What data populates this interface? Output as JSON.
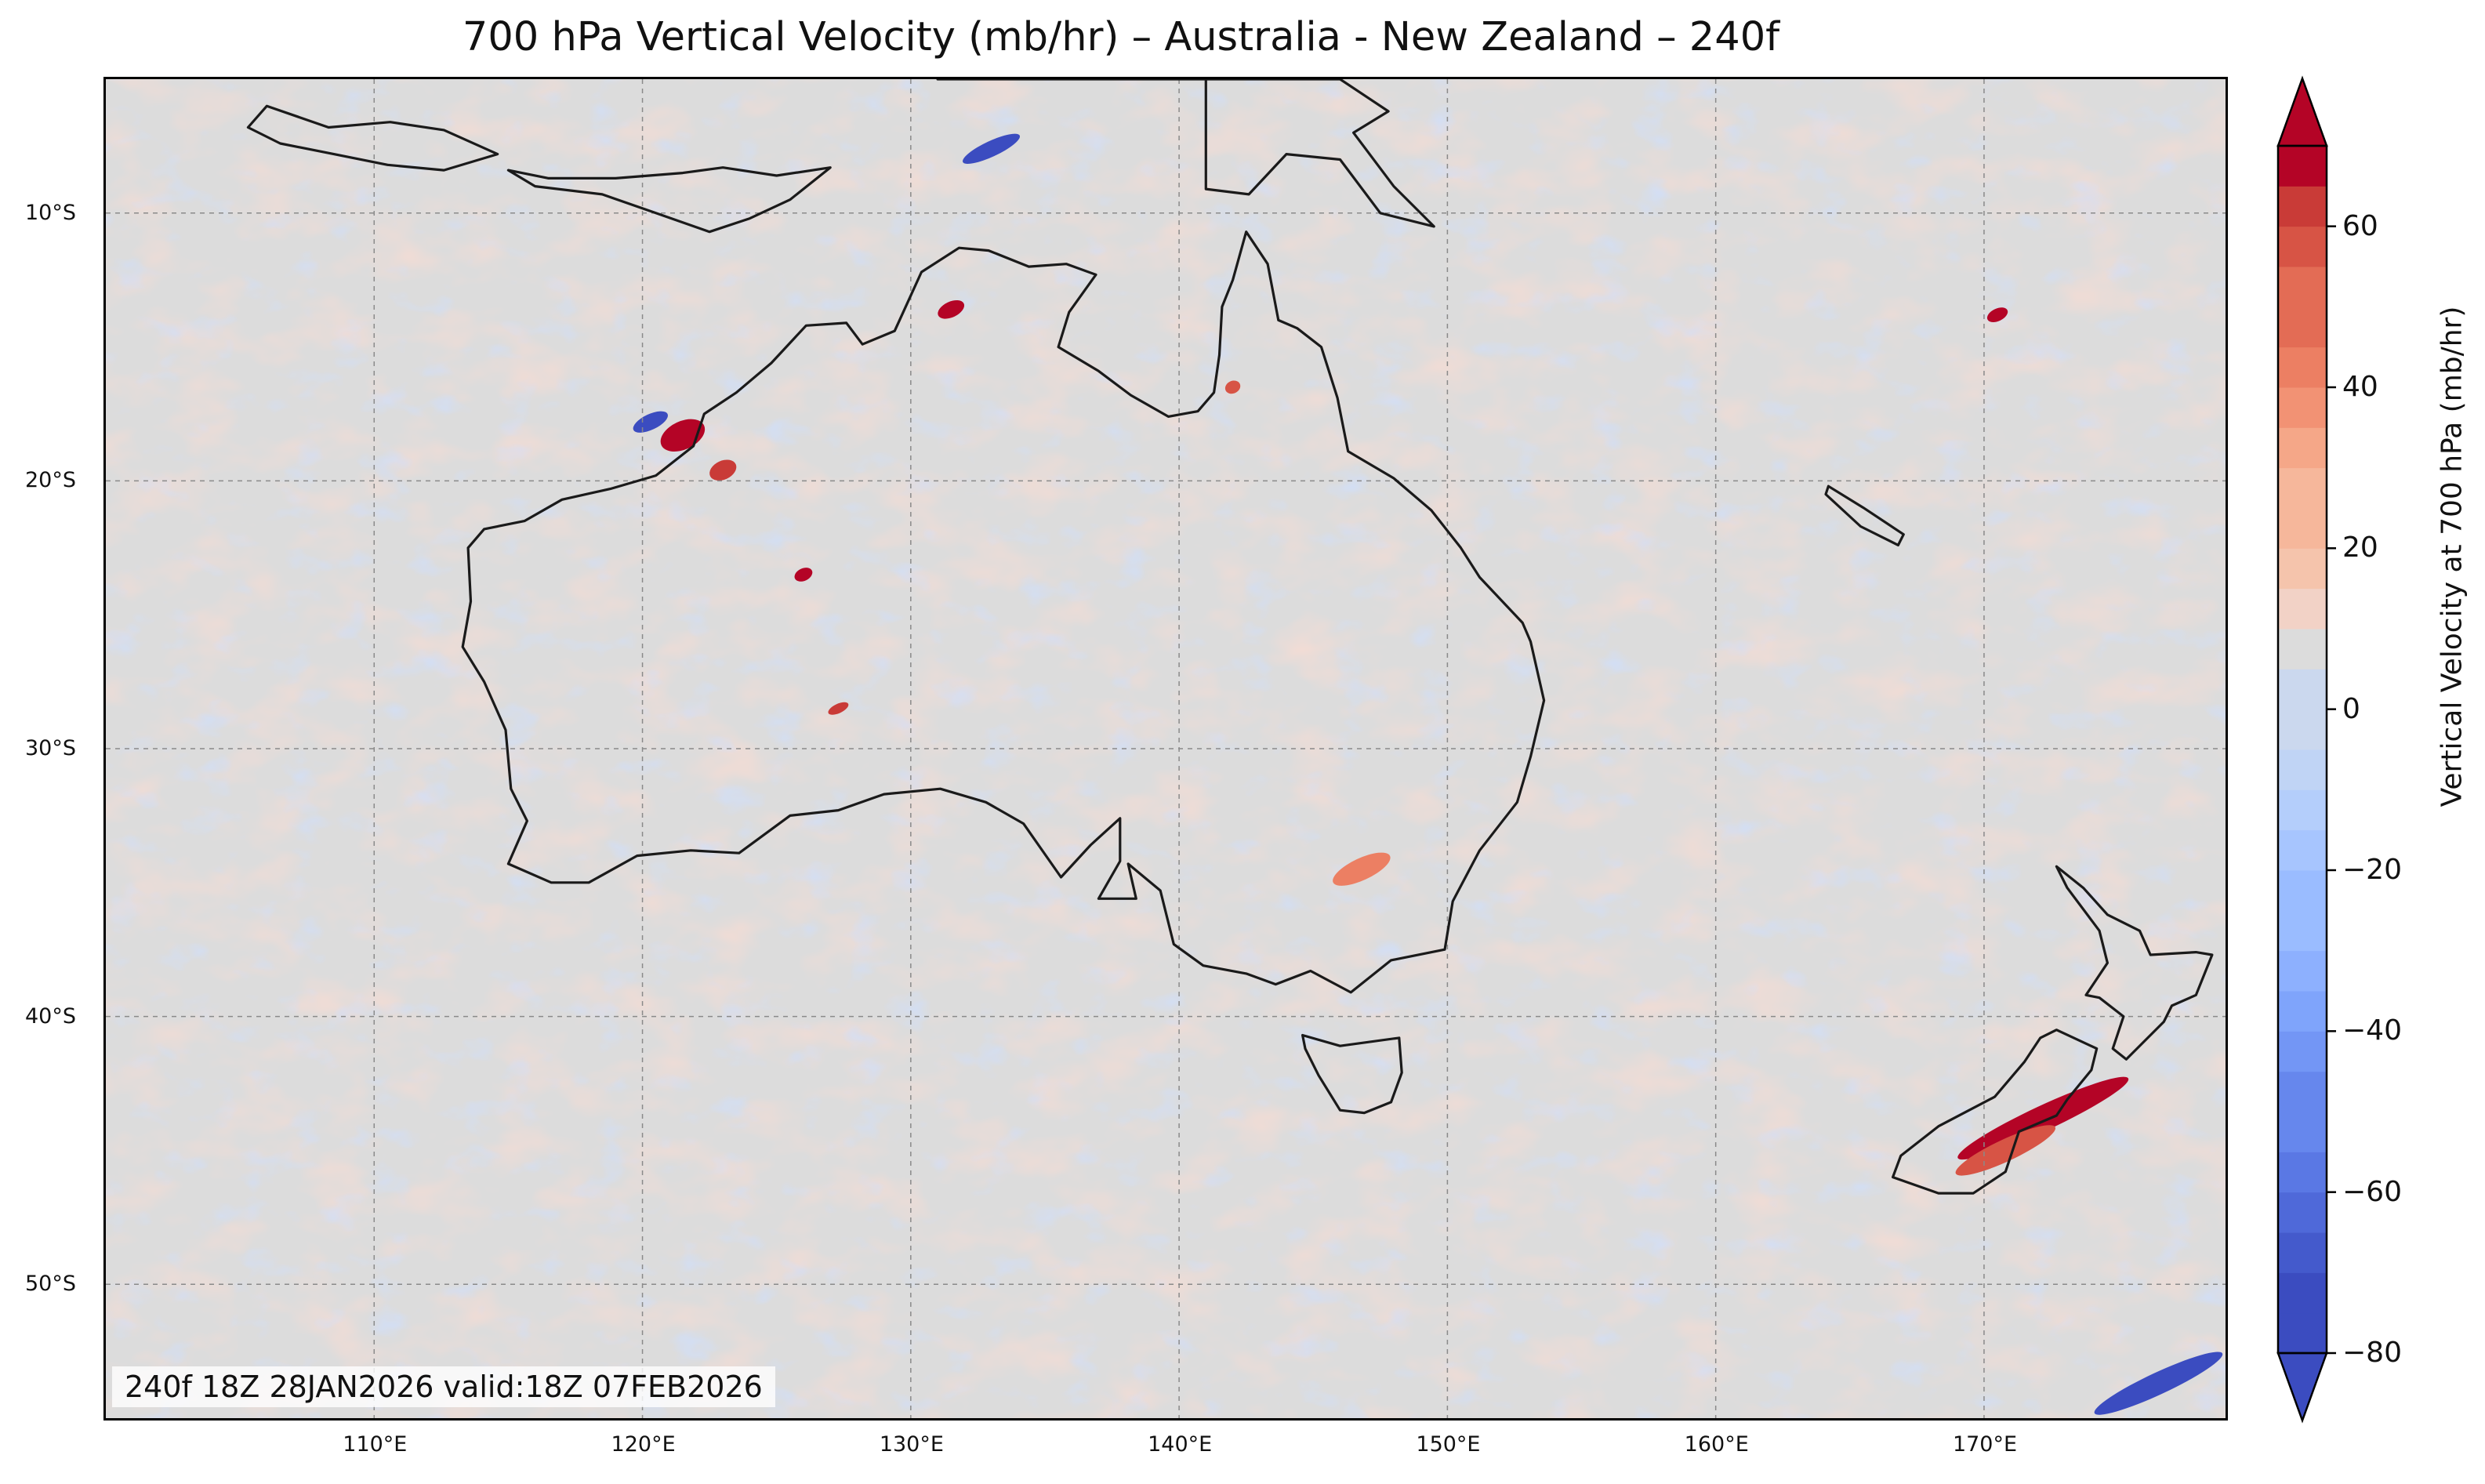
{
  "title": "700 hPa Vertical Velocity (mb/hr) – Australia - New Zealand – 240f",
  "valid_text": "240f 18Z 28JAN2026 valid:18Z 07FEB2026",
  "map": {
    "extent": {
      "lon": [
        100,
        179
      ],
      "lat": [
        -55,
        -5
      ]
    },
    "lat_ticks": [
      {
        "value": -10,
        "label": "10°S"
      },
      {
        "value": -20,
        "label": "20°S"
      },
      {
        "value": -30,
        "label": "30°S"
      },
      {
        "value": -40,
        "label": "40°S"
      },
      {
        "value": -50,
        "label": "50°S"
      }
    ],
    "lon_ticks": [
      {
        "value": 110,
        "label": "110°E"
      },
      {
        "value": 120,
        "label": "120°E"
      },
      {
        "value": 130,
        "label": "130°E"
      },
      {
        "value": 140,
        "label": "140°E"
      },
      {
        "value": 150,
        "label": "150°E"
      },
      {
        "value": 160,
        "label": "160°E"
      },
      {
        "value": 170,
        "label": "170°E"
      }
    ],
    "colors": {
      "coastline": "#1a1a1a",
      "grid": "#8a8a8a",
      "neutral": "#dcdcdc",
      "slight_positive": "#f2d2c6"
    }
  },
  "colorbar": {
    "label": "Vertical Velocity at 700 hPa (mb/hr)",
    "range": [
      -80,
      70
    ],
    "step": 5,
    "tick_values": [
      -80,
      -60,
      -40,
      -20,
      0,
      20,
      40,
      60
    ],
    "tick_labels": [
      "−80",
      "−60",
      "−40",
      "−20",
      "0",
      "20",
      "40",
      "60"
    ],
    "colormap": "coolwarm",
    "colors": [
      "#3b4cc0",
      "#445acc",
      "#4f69d9",
      "#5a78e4",
      "#6687ed",
      "#7396f5",
      "#7fa4fb",
      "#8db0fe",
      "#9abcff",
      "#a7c5fe",
      "#b4cefb",
      "#c0d4f5",
      "#cbd8ee",
      "#dcdcdc",
      "#f2d2c6",
      "#f5c4ac",
      "#f6b79b",
      "#f5a788",
      "#f29274",
      "#ec7f63",
      "#e36c55",
      "#d75445",
      "#c93b37",
      "#b40426"
    ],
    "extend": "both"
  }
}
